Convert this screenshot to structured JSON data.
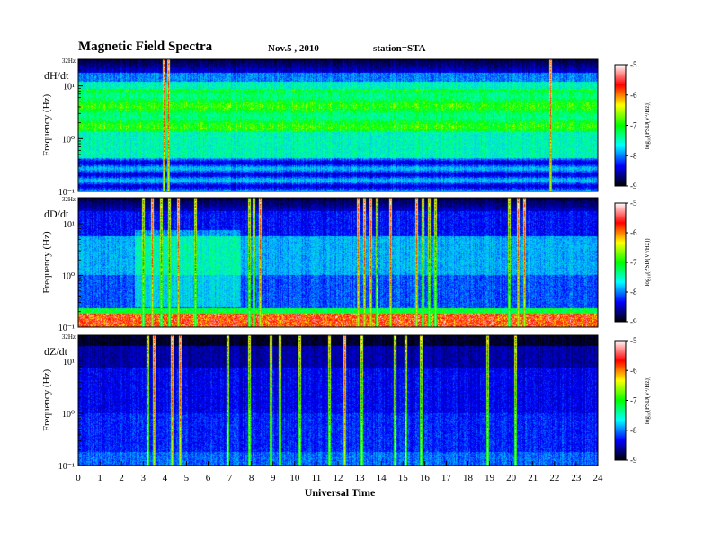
{
  "header": {
    "title": "Magnetic  Field  Spectra",
    "date": "Nov.5  , 2010",
    "station": "station=STA"
  },
  "chart_data": {
    "type": "heatmap",
    "xlabel": "Universal Time",
    "x_ticks": [
      "0",
      "1",
      "2",
      "3",
      "4",
      "5",
      "6",
      "7",
      "8",
      "9",
      "10",
      "11",
      "12",
      "13",
      "14",
      "15",
      "16",
      "17",
      "18",
      "19",
      "20",
      "21",
      "22",
      "23",
      "24"
    ],
    "xlim": [
      0,
      24
    ],
    "y_scale": "log",
    "colorbar": {
      "label": "log₁₀(PSD(V²/Hz))",
      "ticks": [
        "-5",
        "-6",
        "-7",
        "-8",
        "-9"
      ],
      "range": [
        -9,
        -5
      ],
      "colors": [
        "#000000",
        "#0000ff",
        "#00ffff",
        "#00ff00",
        "#ffff00",
        "#ff0000",
        "#ffffff"
      ]
    },
    "panels": [
      {
        "component": "dH/dt",
        "ylabel": "Frequency  (Hz)",
        "top_label": "32Hz",
        "y_ticks": [
          "10¹",
          "10⁰",
          "10⁻¹"
        ],
        "spikes": [
          3.95,
          4.15,
          21.8
        ]
      },
      {
        "component": "dD/dt",
        "ylabel": "Frequency  (Hz)",
        "top_label": "32Hz",
        "y_ticks": [
          "10¹",
          "10⁰",
          "10⁻¹"
        ],
        "spikes": [
          3.0,
          3.4,
          3.8,
          4.2,
          4.6,
          5.4,
          7.9,
          8.1,
          8.4,
          12.9,
          13.2,
          13.5,
          13.8,
          14.4,
          15.6,
          15.9,
          16.2,
          16.5,
          19.9,
          20.3,
          20.6
        ]
      },
      {
        "component": "dZ/dt",
        "ylabel": "Frequency  (Hz)",
        "top_label": "32Hz",
        "y_ticks": [
          "10¹",
          "10⁰",
          "10⁻¹"
        ],
        "spikes": [
          3.2,
          3.5,
          4.3,
          4.7,
          6.9,
          7.9,
          8.9,
          9.3,
          10.2,
          11.6,
          12.3,
          13.1,
          14.6,
          15.1,
          15.8,
          18.9,
          20.2
        ]
      }
    ]
  }
}
